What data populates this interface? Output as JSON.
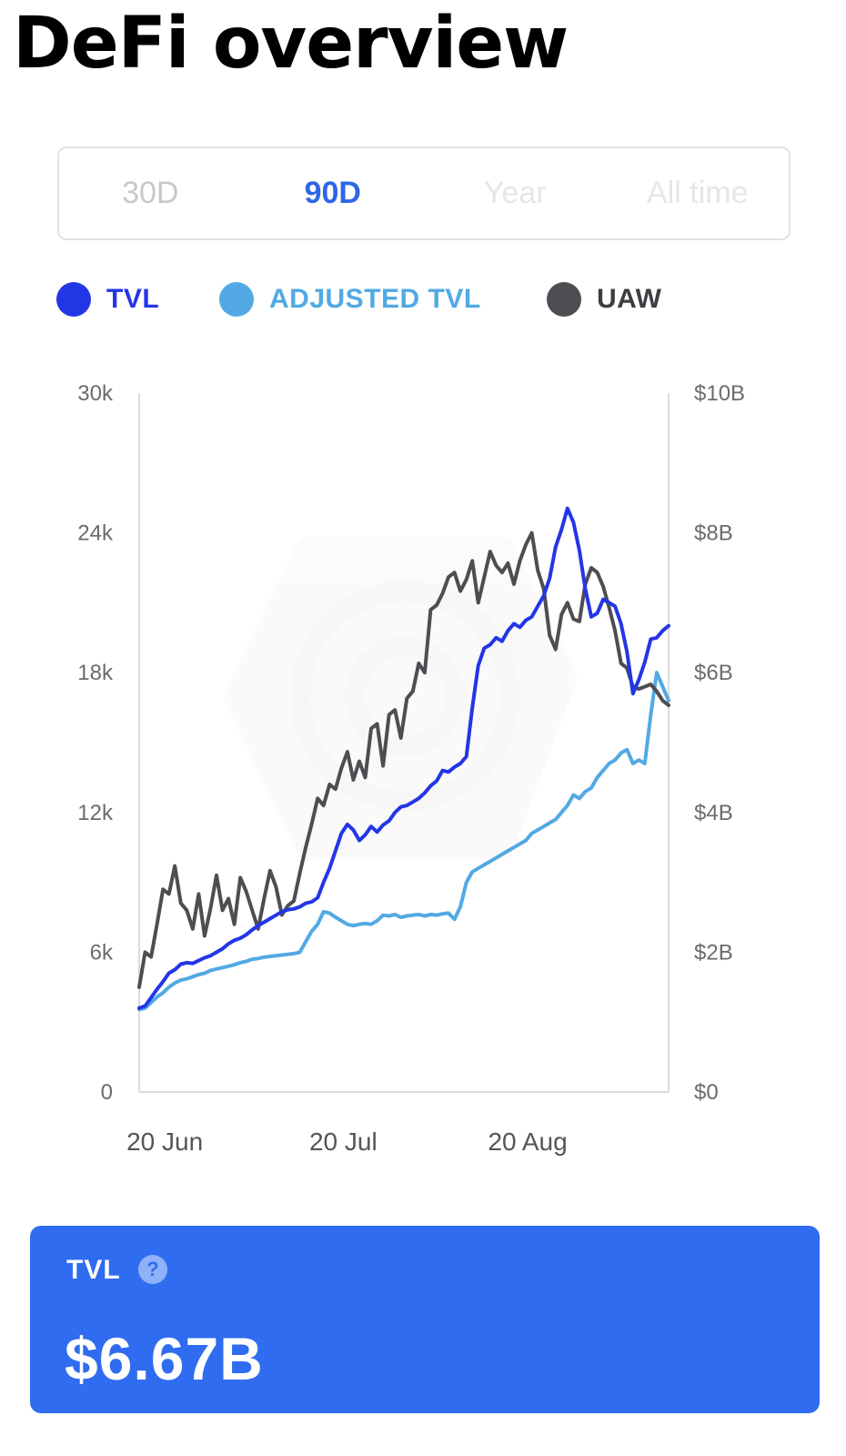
{
  "page": {
    "title": "DeFi overview"
  },
  "range_selector": {
    "tabs": [
      {
        "label": "30D",
        "state": "inactive"
      },
      {
        "label": "90D",
        "state": "active"
      },
      {
        "label": "Year",
        "state": "faint"
      },
      {
        "label": "All time",
        "state": "faint"
      }
    ],
    "selected": "90D"
  },
  "colors": {
    "tvl": "#2336e6",
    "adjusted_tvl": "#52a9e3",
    "uaw": "#4d4d52",
    "accent": "#2f66e8",
    "card": "#2f6cf0"
  },
  "legend": [
    {
      "label": "TVL",
      "color": "#2336e6"
    },
    {
      "label": "ADJUSTED TVL",
      "color": "#52a9e3"
    },
    {
      "label": "UAW",
      "color": "#4d4d52"
    }
  ],
  "chart_data": {
    "type": "line",
    "x_axis": {
      "ticks": [
        "20 Jun",
        "20 Jul",
        "20 Aug"
      ],
      "tick_days": [
        4,
        34,
        65
      ],
      "range_days": [
        0,
        89
      ]
    },
    "y_left": {
      "ticks": [
        "30k",
        "24k",
        "18k",
        "12k",
        "6k",
        "0"
      ],
      "ylim": [
        0,
        30000
      ]
    },
    "y_right": {
      "ticks": [
        "$10B",
        "$8B",
        "$6B",
        "$4B",
        "$2B",
        "$0"
      ],
      "ylim": [
        0,
        10000000000
      ]
    },
    "grid": false,
    "legend_position": "top",
    "series": [
      {
        "name": "UAW",
        "axis": "left",
        "x": [
          0,
          1,
          2,
          3,
          4,
          5,
          6,
          7,
          8,
          9,
          10,
          11,
          12,
          13,
          14,
          15,
          16,
          17,
          18,
          19,
          20,
          21,
          22,
          23,
          24,
          25,
          26,
          27,
          28,
          29,
          30,
          31,
          32,
          33,
          34,
          35,
          36,
          37,
          38,
          39,
          40,
          41,
          42,
          43,
          44,
          45,
          46,
          47,
          48,
          49,
          50,
          51,
          52,
          53,
          54,
          55,
          56,
          57,
          58,
          59,
          60,
          61,
          62,
          63,
          64,
          65,
          66,
          67,
          68,
          69,
          70,
          71,
          72,
          73,
          74,
          75,
          76,
          77,
          78,
          79,
          80,
          81,
          82,
          83,
          84,
          85,
          86,
          87,
          88,
          89
        ],
        "values": [
          4500,
          6000,
          5800,
          7200,
          8700,
          8500,
          9700,
          8100,
          7800,
          7000,
          8500,
          6700,
          7900,
          9300,
          7800,
          8300,
          7200,
          9200,
          8600,
          7800,
          7000,
          8300,
          9500,
          8800,
          7600,
          8000,
          8200,
          9400,
          10500,
          11500,
          12600,
          12300,
          13200,
          13000,
          13900,
          14600,
          13400,
          14200,
          13500,
          15600,
          15800,
          14000,
          16200,
          16400,
          15200,
          16900,
          17200,
          18400,
          18000,
          20700,
          20900,
          21400,
          22100,
          22300,
          21500,
          22000,
          22800,
          21000,
          22100,
          23200,
          22600,
          22300,
          22700,
          21800,
          22800,
          23500,
          24000,
          22400,
          21600,
          19600,
          19000,
          20500,
          21000,
          20300,
          20200,
          21800,
          22500,
          22300,
          21700,
          20800,
          19800,
          18400,
          18200,
          17400,
          17300,
          17400,
          17500,
          17200,
          16800,
          16600
        ]
      },
      {
        "name": "TVL",
        "axis": "right",
        "x": [
          0,
          1,
          2,
          3,
          4,
          5,
          6,
          7,
          8,
          9,
          10,
          11,
          12,
          13,
          14,
          15,
          16,
          17,
          18,
          19,
          20,
          21,
          22,
          23,
          24,
          25,
          26,
          27,
          28,
          29,
          30,
          31,
          32,
          33,
          34,
          35,
          36,
          37,
          38,
          39,
          40,
          41,
          42,
          43,
          44,
          45,
          46,
          47,
          48,
          49,
          50,
          51,
          52,
          53,
          54,
          55,
          56,
          57,
          58,
          59,
          60,
          61,
          62,
          63,
          64,
          65,
          66,
          67,
          68,
          69,
          70,
          71,
          72,
          73,
          74,
          75,
          76,
          77,
          78,
          79,
          80,
          81,
          82,
          83,
          84,
          85,
          86,
          87,
          88,
          89
        ],
        "values": [
          1200000000,
          1230000000,
          1350000000,
          1470000000,
          1580000000,
          1700000000,
          1750000000,
          1830000000,
          1850000000,
          1840000000,
          1880000000,
          1920000000,
          1950000000,
          2000000000,
          2050000000,
          2120000000,
          2170000000,
          2200000000,
          2250000000,
          2320000000,
          2380000000,
          2430000000,
          2480000000,
          2530000000,
          2580000000,
          2610000000,
          2620000000,
          2650000000,
          2700000000,
          2720000000,
          2780000000,
          3000000000,
          3200000000,
          3450000000,
          3700000000,
          3830000000,
          3750000000,
          3600000000,
          3680000000,
          3800000000,
          3720000000,
          3820000000,
          3880000000,
          4000000000,
          4080000000,
          4100000000,
          4150000000,
          4200000000,
          4280000000,
          4380000000,
          4450000000,
          4600000000,
          4580000000,
          4650000000,
          4700000000,
          4800000000,
          5500000000,
          6100000000,
          6350000000,
          6400000000,
          6500000000,
          6450000000,
          6600000000,
          6700000000,
          6650000000,
          6750000000,
          6800000000,
          6950000000,
          7100000000,
          7350000000,
          7800000000,
          8050000000,
          8350000000,
          8150000000,
          7750000000,
          7200000000,
          6800000000,
          6850000000,
          7050000000,
          7000000000,
          6950000000,
          6700000000,
          6300000000,
          5700000000,
          5900000000,
          6150000000,
          6480000000,
          6500000000,
          6600000000,
          6670000000
        ]
      },
      {
        "name": "ADJUSTED TVL",
        "axis": "right",
        "x": [
          0,
          1,
          2,
          3,
          4,
          5,
          6,
          7,
          8,
          9,
          10,
          11,
          12,
          13,
          14,
          15,
          16,
          17,
          18,
          19,
          20,
          21,
          22,
          23,
          24,
          25,
          26,
          27,
          28,
          29,
          30,
          31,
          32,
          33,
          34,
          35,
          36,
          37,
          38,
          39,
          40,
          41,
          42,
          43,
          44,
          45,
          46,
          47,
          48,
          49,
          50,
          51,
          52,
          53,
          54,
          55,
          56,
          57,
          58,
          59,
          60,
          61,
          62,
          63,
          64,
          65,
          66,
          67,
          68,
          69,
          70,
          71,
          72,
          73,
          74,
          75,
          76,
          77,
          78,
          79,
          80,
          81,
          82,
          83,
          84,
          85,
          86,
          87,
          88,
          89
        ],
        "values": [
          1180000000,
          1200000000,
          1280000000,
          1360000000,
          1420000000,
          1500000000,
          1560000000,
          1600000000,
          1620000000,
          1650000000,
          1680000000,
          1700000000,
          1740000000,
          1760000000,
          1780000000,
          1800000000,
          1820000000,
          1850000000,
          1870000000,
          1900000000,
          1910000000,
          1930000000,
          1940000000,
          1950000000,
          1960000000,
          1970000000,
          1980000000,
          2000000000,
          2150000000,
          2300000000,
          2400000000,
          2580000000,
          2560000000,
          2500000000,
          2450000000,
          2400000000,
          2380000000,
          2400000000,
          2410000000,
          2400000000,
          2450000000,
          2530000000,
          2520000000,
          2540000000,
          2500000000,
          2520000000,
          2530000000,
          2540000000,
          2520000000,
          2540000000,
          2530000000,
          2550000000,
          2560000000,
          2470000000,
          2650000000,
          3000000000,
          3150000000,
          3200000000,
          3250000000,
          3300000000,
          3350000000,
          3400000000,
          3450000000,
          3500000000,
          3550000000,
          3600000000,
          3700000000,
          3750000000,
          3800000000,
          3850000000,
          3900000000,
          4000000000,
          4100000000,
          4250000000,
          4200000000,
          4300000000,
          4350000000,
          4500000000,
          4600000000,
          4700000000,
          4750000000,
          4850000000,
          4900000000,
          4700000000,
          4750000000,
          4700000000,
          5400000000,
          6000000000,
          5800000000,
          5600000000
        ]
      }
    ]
  },
  "tvl_card": {
    "label": "TVL",
    "help_icon": "help-circle-icon",
    "help_glyph": "?",
    "value": "$6.67B"
  }
}
